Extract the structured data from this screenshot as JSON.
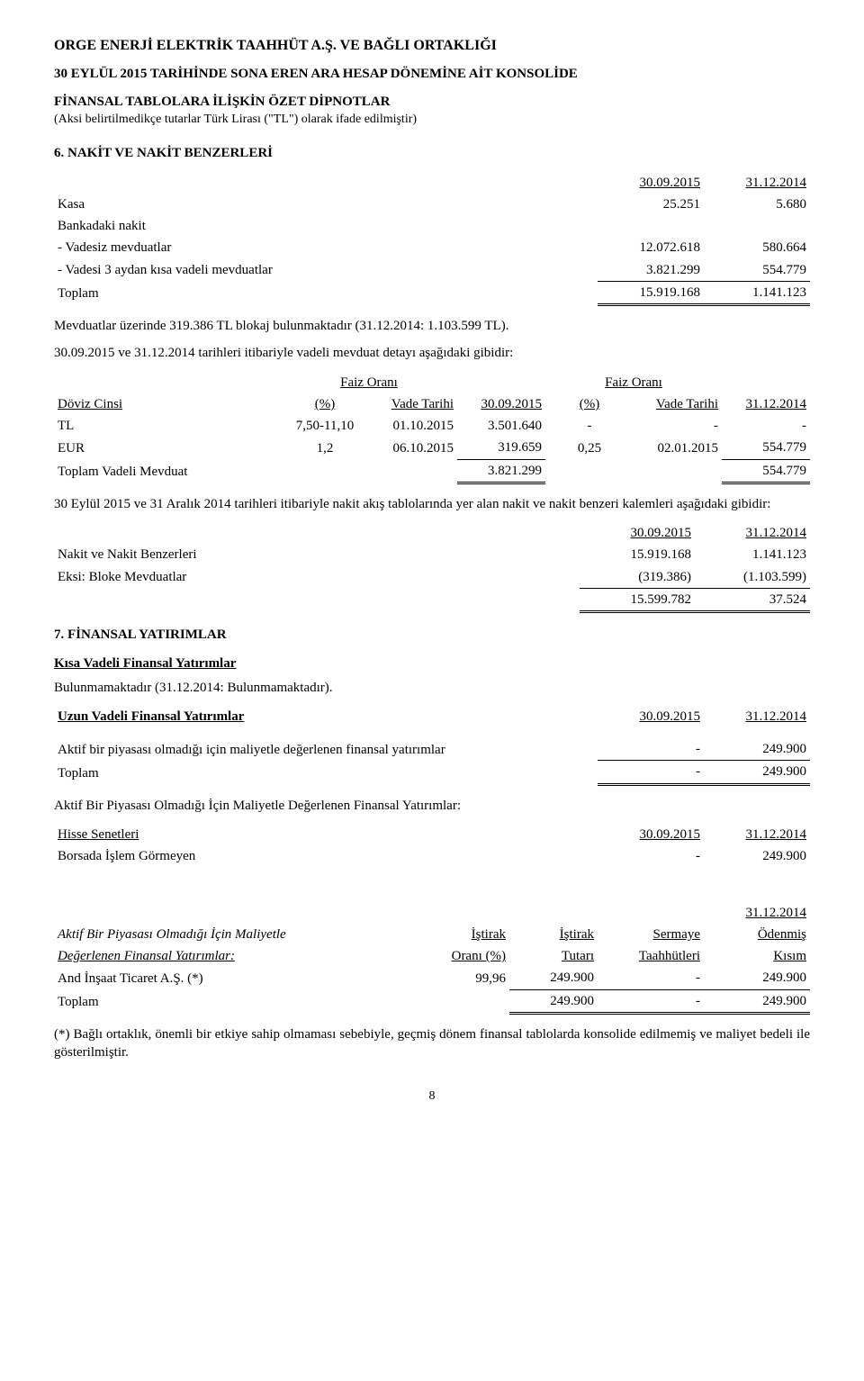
{
  "header": {
    "company": "ORGE ENERJİ ELEKTRİK TAAHHÜT A.Ş. VE BAĞLI ORTAKLIĞI",
    "title_l1": "30 EYLÜL 2015 TARİHİNDE SONA EREN ARA HESAP DÖNEMİNE AİT KONSOLİDE",
    "title_l2": "FİNANSAL TABLOLARA İLİŞKİN ÖZET DİPNOTLAR",
    "currency_note": "(Aksi belirtilmedikçe tutarlar Türk Lirası (\"TL\") olarak ifade edilmiştir)"
  },
  "s6": {
    "title": "6. NAKİT VE NAKİT BENZERLERİ",
    "col1": "30.09.2015",
    "col2": "31.12.2014",
    "rows": {
      "kasa": {
        "label": "Kasa",
        "v1": "25.251",
        "v2": "5.680"
      },
      "bankadaki": {
        "label": "Bankadaki nakit"
      },
      "vadesiz": {
        "label": "- Vadesiz mevduatlar",
        "v1": "12.072.618",
        "v2": "580.664"
      },
      "vadeli3": {
        "label": "- Vadesi 3 aydan kısa vadeli mevduatlar",
        "v1": "3.821.299",
        "v2": "554.779"
      },
      "toplam": {
        "label": "Toplam",
        "v1": "15.919.168",
        "v2": "1.141.123"
      }
    },
    "blokaj": "Mevduatlar üzerinde 319.386 TL blokaj bulunmaktadır (31.12.2014: 1.103.599 TL).",
    "detay_intro": "30.09.2015 ve 31.12.2014 tarihleri itibariyle vadeli mevduat detayı aşağıdaki gibidir:",
    "detay": {
      "h_faiz": "Faiz Oranı",
      "h_doviz": "Döviz Cinsi",
      "h_pct": "(%)",
      "h_vade": "Vade Tarihi",
      "h_d1": "30.09.2015",
      "h_d2": "31.12.2014",
      "tl": {
        "label": "TL",
        "rate1": "7,50-11,10",
        "date1": "01.10.2015",
        "amt1": "3.501.640",
        "rate2": "-",
        "date2": "-",
        "amt2": "-"
      },
      "eur": {
        "label": "EUR",
        "rate1": "1,2",
        "date1": "06.10.2015",
        "amt1": "319.659",
        "rate2": "0,25",
        "date2": "02.01.2015",
        "amt2": "554.779"
      },
      "total": {
        "label": "Toplam Vadeli Mevduat",
        "amt1": "3.821.299",
        "amt2": "554.779"
      }
    },
    "akis_intro": "30 Eylül 2015 ve 31 Aralık 2014 tarihleri itibariyle nakit akış tablolarında yer alan nakit ve nakit benzeri kalemleri aşağıdaki gibidir:",
    "akis": {
      "c1": "30.09.2015",
      "c2": "31.12.2014",
      "r1": {
        "label": "Nakit ve Nakit Benzerleri",
        "v1": "15.919.168",
        "v2": "1.141.123"
      },
      "r2": {
        "label": "Eksi: Bloke Mevduatlar",
        "v1": "(319.386)",
        "v2": "(1.103.599)"
      },
      "tot": {
        "v1": "15.599.782",
        "v2": "37.524"
      }
    }
  },
  "s7": {
    "title": "7. FİNANSAL YATIRIMLAR",
    "kisa_head": "Kısa Vadeli Finansal Yatırımlar",
    "kisa_text": "Bulunmamaktadır (31.12.2014: Bulunmamaktadır).",
    "uzun_head": "Uzun Vadeli Finansal Yatırımlar",
    "uzun": {
      "c1": "30.09.2015",
      "c2": "31.12.2014",
      "r1": {
        "label": "Aktif bir piyasası olmadığı için maliyetle değerlenen finansal yatırımlar",
        "v1": "-",
        "v2": "249.900"
      },
      "tot": {
        "label": "Toplam",
        "v1": "-",
        "v2": "249.900"
      }
    },
    "detay_head": "Aktif Bir Piyasası Olmadığı İçin Maliyetle Değerlenen Finansal Yatırımlar:",
    "hisse_head": "Hisse Senetleri",
    "hisse": {
      "c1": "30.09.2015",
      "c2": "31.12.2014",
      "r1": {
        "label": "Borsada İşlem Görmeyen",
        "v1": "-",
        "v2": "249.900"
      }
    },
    "detail": {
      "c_date": "31.12.2014",
      "h1a": "Aktif Bir Piyasası Olmadığı İçin Maliyetle",
      "h1b": "Değerlenen Finansal Yatırımlar:",
      "h2a": "İştirak",
      "h2b": "Oranı (%)",
      "h3a": "İştirak",
      "h3b": "Tutarı",
      "h4a": "Sermaye",
      "h4b": "Taahhütleri",
      "h5a": "Ödenmiş",
      "h5b": "Kısım",
      "r1": {
        "label": "And İnşaat Ticaret A.Ş. (*)",
        "pct": "99,96",
        "tutar": "249.900",
        "taah": "-",
        "kisim": "249.900"
      },
      "tot": {
        "label": "Toplam",
        "tutar": "249.900",
        "taah": "-",
        "kisim": "249.900"
      }
    },
    "footnote": "(*) Bağlı ortaklık, önemli bir etkiye sahip olmaması sebebiyle, geçmiş dönem finansal tablolarda konsolide edilmemiş ve maliyet bedeli ile gösterilmiştir."
  },
  "page": "8"
}
